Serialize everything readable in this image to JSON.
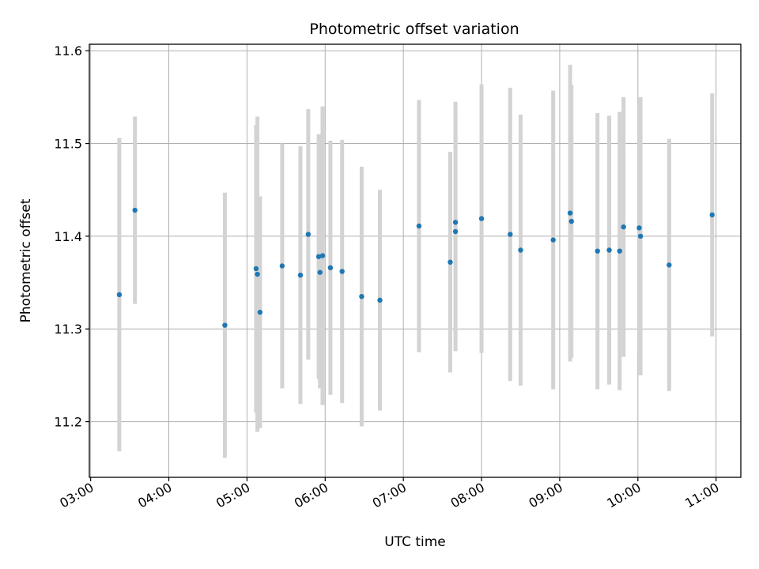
{
  "chart_data": {
    "type": "scatter",
    "title": "Photometric offset variation",
    "xlabel": "UTC time",
    "ylabel": "Photometric offset",
    "x_unit": "UTC time (HH:MM)",
    "xlim": [
      "02:59",
      "11:19"
    ],
    "ylim": [
      11.14,
      11.607
    ],
    "x_ticks": [
      "03:00",
      "04:00",
      "05:00",
      "06:00",
      "07:00",
      "08:00",
      "09:00",
      "10:00",
      "11:00"
    ],
    "y_ticks": [
      "11.2",
      "11.3",
      "11.4",
      "11.5",
      "11.6"
    ],
    "grid": true,
    "colors": {
      "point": "#1f77b4",
      "errorbar": "#d3d3d3",
      "grid": "#b0b0b0"
    },
    "series": [
      {
        "points": [
          {
            "x": "03:22",
            "y": 11.337,
            "err": 0.169
          },
          {
            "x": "03:34",
            "y": 11.428,
            "err": 0.101
          },
          {
            "x": "04:43",
            "y": 11.304,
            "err": 0.143
          },
          {
            "x": "05:07",
            "y": 11.365,
            "err": 0.155
          },
          {
            "x": "05:08",
            "y": 11.359,
            "err": 0.17
          },
          {
            "x": "05:10",
            "y": 11.318,
            "err": 0.125
          },
          {
            "x": "05:27",
            "y": 11.368,
            "err": 0.132
          },
          {
            "x": "05:41",
            "y": 11.358,
            "err": 0.139
          },
          {
            "x": "05:47",
            "y": 11.402,
            "err": 0.135
          },
          {
            "x": "05:55",
            "y": 11.378,
            "err": 0.132
          },
          {
            "x": "05:56",
            "y": 11.361,
            "err": 0.125
          },
          {
            "x": "05:58",
            "y": 11.379,
            "err": 0.161
          },
          {
            "x": "06:04",
            "y": 11.366,
            "err": 0.137
          },
          {
            "x": "06:13",
            "y": 11.362,
            "err": 0.142
          },
          {
            "x": "06:28",
            "y": 11.335,
            "err": 0.14
          },
          {
            "x": "06:42",
            "y": 11.331,
            "err": 0.119
          },
          {
            "x": "07:12",
            "y": 11.411,
            "err": 0.136
          },
          {
            "x": "07:36",
            "y": 11.372,
            "err": 0.119
          },
          {
            "x": "07:40",
            "y": 11.405,
            "err": 0.129
          },
          {
            "x": "07:40",
            "y": 11.415,
            "err": 0.13
          },
          {
            "x": "08:00",
            "y": 11.419,
            "err": 0.145
          },
          {
            "x": "08:22",
            "y": 11.402,
            "err": 0.158
          },
          {
            "x": "08:30",
            "y": 11.385,
            "err": 0.146
          },
          {
            "x": "08:55",
            "y": 11.396,
            "err": 0.161
          },
          {
            "x": "09:08",
            "y": 11.425,
            "err": 0.16
          },
          {
            "x": "09:09",
            "y": 11.416,
            "err": 0.147
          },
          {
            "x": "09:29",
            "y": 11.384,
            "err": 0.149
          },
          {
            "x": "09:38",
            "y": 11.385,
            "err": 0.145
          },
          {
            "x": "09:46",
            "y": 11.384,
            "err": 0.15
          },
          {
            "x": "09:49",
            "y": 11.41,
            "err": 0.14
          },
          {
            "x": "10:01",
            "y": 11.409,
            "err": 0.132
          },
          {
            "x": "10:02",
            "y": 11.4,
            "err": 0.15
          },
          {
            "x": "10:24",
            "y": 11.369,
            "err": 0.136
          },
          {
            "x": "10:57",
            "y": 11.423,
            "err": 0.131
          }
        ]
      }
    ]
  }
}
